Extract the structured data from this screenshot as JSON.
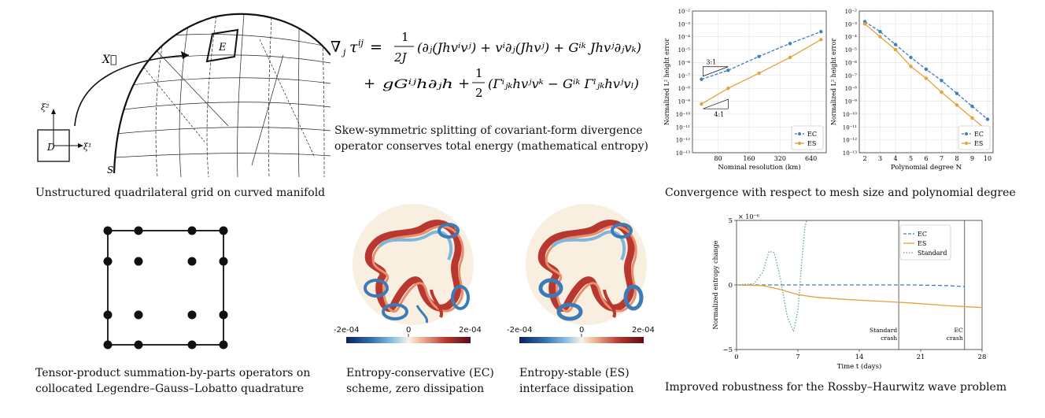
{
  "grid_panel": {
    "caption": "Unstructured quadrilateral grid on curved manifold",
    "labels": {
      "mapping": "X⃗",
      "element": "E",
      "domain": "D",
      "surface": "S",
      "xi1": "ξ¹",
      "xi2": "ξ²"
    }
  },
  "equation_panel": {
    "line1": {
      "lhs": "∇",
      "lhs_sub": "j",
      "tau": "τ",
      "tau_sup": "ij",
      "eq": " = ",
      "frac_num": "1",
      "frac_den": "2J",
      "body": "(∂ⱼ(Jhvⁱvʲ) + vⁱ∂ⱼ(Jhvʲ) + Gⁱᵏ Jhvʲ∂ⱼvₖ)"
    },
    "line2": {
      "plus": "+",
      "term1": "gGⁱʲh∂ⱼh",
      "plus2": "+",
      "frac_num": "1",
      "frac_den": "2",
      "body": "(Γⁱⱼₖhvʲvᵏ − Gⁱᵏ Γˡⱼₖhvʲvₗ)"
    },
    "caption_line1": "Skew-symmetric splitting of covariant-form divergence",
    "caption_line2": "operator conserves total energy (mathematical entropy)"
  },
  "convergence_panel": {
    "caption": "Convergence with respect to mesh size and polynomial degree",
    "triangle_labels": [
      "3:1",
      "4:1"
    ]
  },
  "chart_data": [
    {
      "type": "line",
      "xlabel": "Nominal resolution (km)",
      "ylabel": "Normalized L² height error",
      "x_scale": "log",
      "x_ticks": [
        "80",
        "160",
        "320",
        "640"
      ],
      "y_scale": "log",
      "ylim": [
        1e-13,
        0.01
      ],
      "y_ticks": [
        "10⁻¹³",
        "10⁻¹²",
        "10⁻¹¹",
        "10⁻¹⁰",
        "10⁻⁹",
        "10⁻⁸",
        "10⁻⁷",
        "10⁻⁶",
        "10⁻⁵",
        "10⁻⁴",
        "10⁻³",
        "10⁻²"
      ],
      "grid": true,
      "legend": "bottom-right",
      "series": [
        {
          "name": "EC",
          "style": "dashed",
          "color": "#3f7fbf",
          "x": [
            55,
            100,
            200,
            400,
            800
          ],
          "y": [
            5e-08,
            2.5e-07,
            3e-06,
            3e-05,
            0.00025
          ]
        },
        {
          "name": "ES",
          "style": "solid",
          "color": "#e3a23a",
          "x": [
            55,
            100,
            200,
            400,
            800
          ],
          "y": [
            6e-10,
            1e-08,
            1.5e-07,
            2.5e-06,
            6e-05
          ]
        }
      ]
    },
    {
      "type": "line",
      "xlabel": "Polynomial degree N",
      "ylabel": "Normalized L² height error",
      "x": [
        2,
        3,
        4,
        5,
        6,
        7,
        8,
        9,
        10
      ],
      "x_ticks": [
        "2",
        "3",
        "4",
        "5",
        "6",
        "7",
        "8",
        "9",
        "10"
      ],
      "y_scale": "log",
      "ylim": [
        1e-13,
        0.01
      ],
      "y_ticks": [
        "10⁻¹³",
        "10⁻¹²",
        "10⁻¹¹",
        "10⁻¹⁰",
        "10⁻⁹",
        "10⁻⁸",
        "10⁻⁷",
        "10⁻⁶",
        "10⁻⁵",
        "10⁻⁴",
        "10⁻³",
        "10⁻²"
      ],
      "grid": true,
      "legend": "bottom-right",
      "series": [
        {
          "name": "EC",
          "style": "dashed",
          "color": "#3f7fbf",
          "y": [
            0.0015,
            0.00025,
            2.5e-05,
            2.5e-06,
            3e-07,
            4e-08,
            4e-09,
            4e-10,
            4e-11
          ]
        },
        {
          "name": "ES",
          "style": "solid",
          "color": "#e3a23a",
          "y": [
            0.001,
            0.0001,
            1e-05,
            5e-07,
            6e-08,
            5e-09,
            5e-10,
            5e-11,
            5e-12
          ]
        }
      ]
    },
    {
      "type": "line",
      "xlabel": "Time t (days)",
      "ylabel": "Normalized entropy change",
      "y_multiplier": "× 10⁻⁶",
      "x_ticks": [
        "0",
        "7",
        "14",
        "21",
        "28"
      ],
      "xlim": [
        0,
        28
      ],
      "y_ticks": [
        "5",
        "0",
        "−5"
      ],
      "ylim": [
        -5,
        5
      ],
      "legend": "top-right",
      "annotations": [
        {
          "label_line1": "Standard",
          "label_line2": "crash",
          "x": 18.5
        },
        {
          "label_line1": "EC",
          "label_line2": "crash",
          "x": 26
        }
      ],
      "series": [
        {
          "name": "EC",
          "style": "dashed",
          "color": "#3f7fbf",
          "x": [
            0,
            5,
            10,
            15,
            20,
            24,
            26
          ],
          "y": [
            0,
            0,
            0,
            0,
            0,
            -0.05,
            -0.12
          ]
        },
        {
          "name": "ES",
          "style": "solid",
          "color": "#e3a23a",
          "x": [
            0,
            3,
            5,
            7,
            9,
            12,
            16,
            20,
            24,
            28
          ],
          "y": [
            0,
            -0.05,
            -0.35,
            -0.75,
            -0.95,
            -1.1,
            -1.25,
            -1.4,
            -1.6,
            -1.75
          ]
        },
        {
          "name": "Standard",
          "style": "dotted",
          "color": "#5ba88a",
          "x": [
            0,
            2,
            3,
            3.7,
            4.3,
            5,
            5.8,
            6.5,
            7,
            7.4,
            7.8,
            8
          ],
          "y": [
            0,
            0.1,
            1.0,
            2.6,
            2.5,
            0.5,
            -2.5,
            -3.6,
            -2.0,
            1.5,
            4.5,
            5
          ]
        }
      ],
      "robustness_caption": "Improved robustness for the Rossby–Haurwitz wave problem"
    }
  ],
  "sbp_panel": {
    "caption_line1": "Tensor-product summation-by-parts operators on",
    "caption_line2": "collocated Legendre–Gauss–Lobatto quadrature"
  },
  "ec_panel": {
    "caption_line1": "Entropy-conservative (EC)",
    "caption_line2": "scheme, zero dissipation",
    "colorbar_min": "-2e-04",
    "colorbar_mid": "0",
    "colorbar_max": "2e-04"
  },
  "es_panel": {
    "caption_line1": "Entropy-stable (ES)",
    "caption_line2": "interface dissipation",
    "colorbar_min": "-2e-04",
    "colorbar_mid": "0",
    "colorbar_max": "2e-04"
  }
}
